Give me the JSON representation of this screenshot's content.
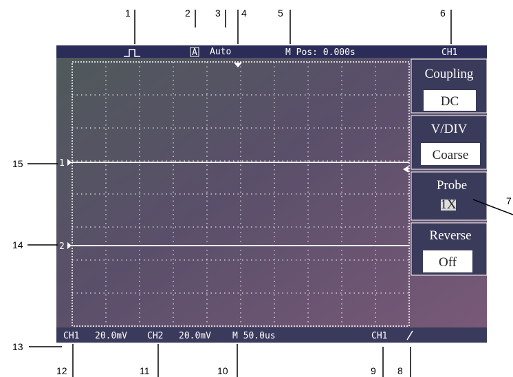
{
  "callouts": [
    "1",
    "2",
    "3",
    "4",
    "5",
    "6",
    "7",
    "8",
    "9",
    "10",
    "11",
    "12",
    "13",
    "14",
    "15"
  ],
  "top_bar": {
    "trigger_mode": "Auto",
    "position": "M Pos: 0.000s",
    "channel": "CH1"
  },
  "menu": [
    {
      "label": "Coupling",
      "value": "DC"
    },
    {
      "label": "V/DIV",
      "value": "Coarse"
    },
    {
      "label": "Probe",
      "value": "1X"
    },
    {
      "label": "Reverse",
      "value": "Off"
    }
  ],
  "traces": [
    "1",
    "2"
  ],
  "bottom_bar": {
    "ch1": "CH1",
    "ch1_scale": "20.0mV",
    "ch2": "CH2",
    "ch2_scale": "20.0mV",
    "timebase": "M 50.0us",
    "trigger_source": "CH1"
  }
}
